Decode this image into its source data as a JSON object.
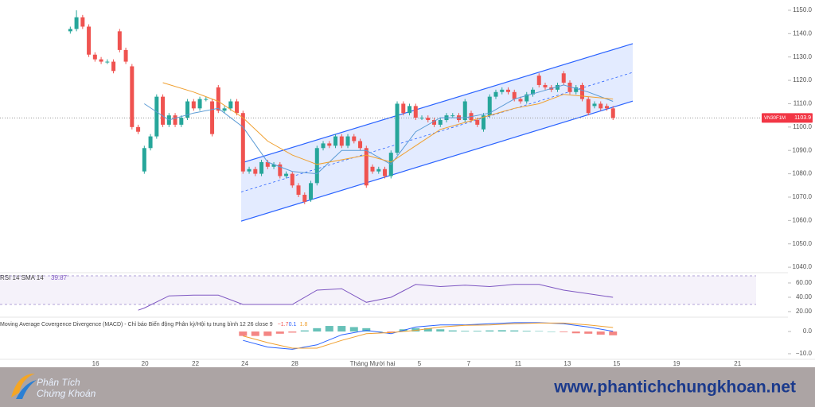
{
  "chart_data": [
    {
      "type": "candlestick",
      "symbol": "VN30F1M",
      "last_price": 1103.9,
      "up_color": "#26a69a",
      "down_color": "#ef5350",
      "xlim": [
        -11.4,
        111.2
      ],
      "ylim": [
        1038,
        1154.4
      ],
      "yticks": [
        {
          "value": 1040,
          "label": "1040.0"
        },
        {
          "value": 1050,
          "label": "1050.0"
        },
        {
          "value": 1060,
          "label": "1060.0"
        },
        {
          "value": 1070,
          "label": "1070.0"
        },
        {
          "value": 1080,
          "label": "1080.0"
        },
        {
          "value": 1090,
          "label": "1090.0"
        },
        {
          "value": 1100,
          "label": "1100.0"
        },
        {
          "value": 1110,
          "label": "1110.0"
        },
        {
          "value": 1120,
          "label": "1120.0"
        },
        {
          "value": 1130,
          "label": "1130.0"
        },
        {
          "value": 1140,
          "label": "1140.0"
        },
        {
          "value": 1150,
          "label": "1150.0"
        }
      ],
      "xticks": [
        {
          "value": 4.1,
          "label": "16"
        },
        {
          "value": 12.1,
          "label": "20"
        },
        {
          "value": 20.3,
          "label": "22"
        },
        {
          "value": 28.3,
          "label": "24"
        },
        {
          "value": 36.4,
          "label": "28"
        },
        {
          "value": 49,
          "label": "Tháng Mười hai"
        },
        {
          "value": 56.6,
          "label": "5"
        },
        {
          "value": 64.6,
          "label": "7"
        },
        {
          "value": 72.6,
          "label": "11"
        },
        {
          "value": 80.6,
          "label": "13"
        },
        {
          "value": 88.6,
          "label": "15"
        },
        {
          "value": 98.3,
          "label": "19"
        },
        {
          "value": 108.2,
          "label": "21"
        }
      ],
      "open": [
        1141,
        1142,
        1147,
        1143,
        1131,
        1129,
        1128,
        1128,
        1141,
        1133,
        1126,
        1100,
        1081,
        1091,
        1096,
        1113,
        1101,
        1105,
        1101,
        1104,
        1111,
        1108,
        1112,
        1111,
        1117,
        1107,
        1108,
        1111,
        1106,
        1081,
        1082,
        1080,
        1085,
        1083,
        1084,
        1079,
        1080,
        1075,
        1071,
        1069,
        1076,
        1091,
        1093,
        1092,
        1096,
        1092,
        1096,
        1094,
        1091,
        1083,
        1081,
        1082,
        1079,
        1089,
        1110,
        1106,
        1109,
        1104,
        1104,
        1103,
        1101,
        1103,
        1105,
        1105,
        1103,
        1106,
        1103,
        1099,
        1105,
        1113,
        1115,
        1116,
        1115,
        1112,
        1111,
        1114,
        1122,
        1118,
        1117,
        1116,
        1123,
        1119,
        1115,
        1118,
        1112,
        1109,
        1110,
        1109,
        1108
      ],
      "high": [
        1143,
        1150,
        1148,
        1144,
        1132,
        1130,
        1129,
        1129,
        1142,
        1134,
        1127,
        1101,
        1092,
        1097,
        1114,
        1114,
        1106,
        1106,
        1105,
        1112,
        1112,
        1113,
        1113,
        1112,
        1118,
        1109,
        1112,
        1112,
        1107,
        1083,
        1083,
        1086,
        1086,
        1085,
        1085,
        1081,
        1081,
        1076,
        1072,
        1077,
        1092,
        1094,
        1094,
        1097,
        1097,
        1097,
        1097,
        1095,
        1092,
        1084,
        1083,
        1083,
        1090,
        1111,
        1111,
        1110,
        1110,
        1105,
        1105,
        1104,
        1104,
        1106,
        1106,
        1106,
        1112,
        1107,
        1104,
        1106,
        1114,
        1116,
        1117,
        1117,
        1116,
        1113,
        1115,
        1117,
        1123,
        1119,
        1118,
        1119,
        1124,
        1120,
        1118,
        1119,
        1113,
        1111,
        1111,
        1110,
        1109
      ],
      "low": [
        1140,
        1141,
        1142,
        1130,
        1128,
        1127,
        1127,
        1123,
        1132,
        1127,
        1099,
        1097,
        1080,
        1090,
        1095,
        1100,
        1100,
        1100,
        1100,
        1103,
        1107,
        1107,
        1111,
        1096,
        1106,
        1106,
        1107,
        1105,
        1080,
        1080,
        1079,
        1079,
        1082,
        1082,
        1078,
        1078,
        1074,
        1070,
        1067,
        1068,
        1075,
        1090,
        1091,
        1091,
        1091,
        1091,
        1093,
        1090,
        1074,
        1080,
        1080,
        1078,
        1078,
        1088,
        1105,
        1105,
        1103,
        1103,
        1102,
        1100,
        1100,
        1102,
        1104,
        1102,
        1102,
        1102,
        1100,
        1098,
        1104,
        1112,
        1114,
        1114,
        1111,
        1110,
        1110,
        1113,
        1117,
        1116,
        1115,
        1115,
        1118,
        1114,
        1114,
        1111,
        1105,
        1108,
        1107,
        1107,
        1103
      ],
      "close": [
        1142,
        1147,
        1143,
        1131,
        1129,
        1128,
        1128,
        1124,
        1133,
        1128,
        1100,
        1098,
        1091,
        1096,
        1113,
        1101,
        1105,
        1101,
        1104,
        1111,
        1108,
        1112,
        1112,
        1097,
        1107,
        1108,
        1111,
        1106,
        1081,
        1082,
        1080,
        1085,
        1083,
        1084,
        1079,
        1080,
        1075,
        1071,
        1068,
        1076,
        1091,
        1093,
        1092,
        1096,
        1092,
        1096,
        1094,
        1091,
        1075,
        1081,
        1082,
        1079,
        1089,
        1110,
        1106,
        1109,
        1104,
        1104,
        1103,
        1101,
        1103,
        1105,
        1105,
        1103,
        1111,
        1103,
        1101,
        1105,
        1113,
        1115,
        1116,
        1115,
        1112,
        1111,
        1114,
        1116,
        1118,
        1117,
        1116,
        1118,
        1119,
        1115,
        1117,
        1112,
        1106,
        1110,
        1108,
        1108,
        1103.9
      ],
      "lines": [
        {
          "color": "#5b9bd5",
          "x": [
            12,
            16,
            20,
            24,
            28,
            32,
            36,
            40,
            44,
            48,
            52,
            56,
            60,
            64,
            68,
            72,
            76,
            80,
            84,
            88
          ],
          "values": [
            1110,
            1103,
            1106,
            1108,
            1100,
            1085,
            1081,
            1080,
            1090,
            1090,
            1084,
            1098,
            1104,
            1104,
            1106,
            1112,
            1115,
            1118,
            1115,
            1111
          ]
        },
        {
          "color": "#f0a030",
          "x": [
            15,
            20,
            24,
            28,
            32,
            36,
            40,
            44,
            48,
            52,
            56,
            60,
            64,
            68,
            72,
            76,
            80,
            84,
            88
          ],
          "values": [
            1119,
            1115,
            1111,
            1104,
            1094,
            1088,
            1084,
            1086,
            1088,
            1085,
            1092,
            1099,
            1102,
            1105,
            1108,
            1110,
            1114,
            1113,
            1112
          ]
        }
      ],
      "channel": {
        "color": "#2962ff",
        "x": [
          27.7,
          91.2
        ],
        "upper": [
          1084.6,
          1135.7
        ],
        "lower": [
          1059.7,
          1111.1
        ],
        "middle": [
          1072.2,
          1123.4
        ]
      }
    },
    {
      "type": "line",
      "title": "RSI 14 SMA 14",
      "last_value": 39.87,
      "color": "#7e57c2",
      "ylim": [
        13.3,
        74.4
      ],
      "band": [
        30,
        70
      ],
      "yticks": [
        {
          "value": 60,
          "label": "60.00"
        },
        {
          "value": 40,
          "label": "40.00"
        },
        {
          "value": 20,
          "label": "20.00"
        }
      ],
      "x": [
        11,
        12,
        16,
        20,
        24,
        28,
        32,
        36,
        40,
        44,
        48,
        52,
        56,
        60,
        64,
        68,
        72,
        76,
        80,
        84,
        88
      ],
      "values": [
        22,
        25,
        42,
        43,
        43,
        30,
        30,
        30,
        50,
        52,
        33,
        40,
        58,
        55,
        57,
        55,
        58,
        58,
        50,
        45,
        40
      ]
    },
    {
      "type": "macd",
      "title": "Moving Average Covergence Divergence (MACD) - Chỉ báo Biến động Phân kỳ/Hội tụ trung bình 12 26 close 9",
      "readout": [
        -1.7,
        0.1,
        1.8
      ],
      "readout_labels": [
        "−1.7",
        "0.1",
        "1.8"
      ],
      "readout_colors": [
        "#ef5350",
        "#2962ff",
        "#f0a030"
      ],
      "ylim": [
        -13.6,
        6.1
      ],
      "yticks": [
        {
          "value": 0,
          "label": "0.0"
        },
        {
          "value": -10,
          "label": "−10.0"
        }
      ],
      "hist_x": [
        28,
        30,
        32,
        34,
        36,
        38,
        40,
        42,
        44,
        46,
        48,
        50,
        52,
        54,
        56,
        58,
        60,
        62,
        64,
        66,
        68,
        70,
        72,
        74,
        76,
        78,
        80,
        82,
        84,
        86,
        88
      ],
      "hist": [
        -2,
        -2,
        -2,
        -1,
        -0.5,
        0.5,
        1.5,
        2.5,
        2.5,
        2,
        1.5,
        0,
        -0.5,
        1,
        1.5,
        1.5,
        1,
        0.5,
        0.3,
        0.3,
        0.5,
        0.6,
        0.5,
        0.3,
        0.2,
        0,
        -0.3,
        -0.8,
        -1,
        -1.4,
        -1.7
      ],
      "hist_up_color": "#26a69a",
      "hist_down_color": "#ef5350",
      "line_x": [
        28,
        32,
        36,
        40,
        44,
        48,
        52,
        56,
        60,
        64,
        68,
        72,
        76,
        80,
        84,
        88
      ],
      "macd": [
        -4,
        -7,
        -8,
        -6,
        -1.5,
        0.5,
        -1,
        2,
        3,
        3,
        3.5,
        4,
        4,
        3.5,
        2,
        0.1
      ],
      "signal": [
        -2,
        -5,
        -7.5,
        -7.5,
        -4,
        -1,
        -0.5,
        0.5,
        2,
        2.8,
        3,
        3.5,
        3.8,
        3.8,
        3,
        1.8
      ],
      "macd_color": "#2962ff",
      "signal_color": "#f0a030"
    }
  ],
  "branding": {
    "logo_line1": "Phân Tích",
    "logo_line2": "Chứng Khoán",
    "url": "www.phantichchungkhoan.net"
  }
}
